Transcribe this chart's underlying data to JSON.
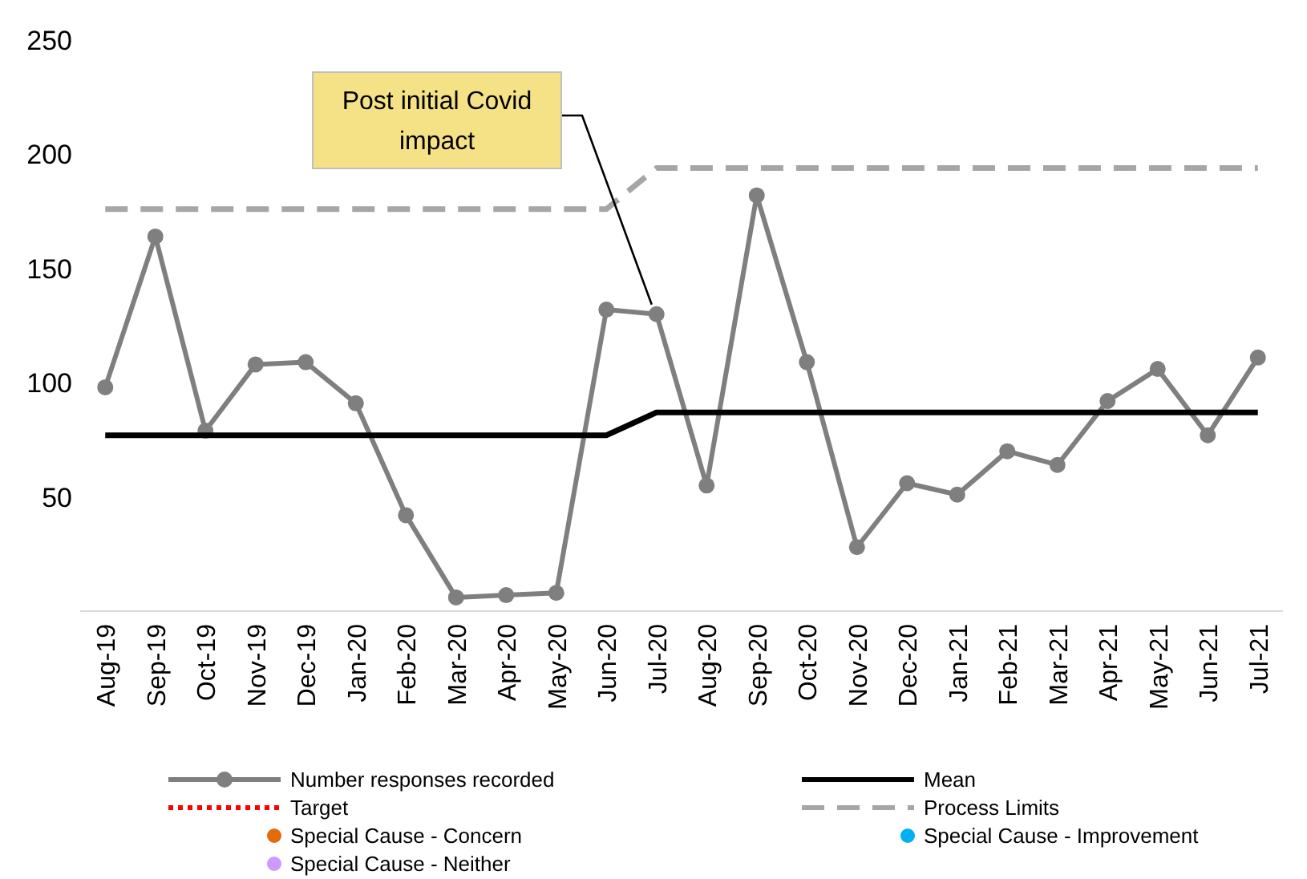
{
  "chart_data": {
    "type": "line",
    "categories": [
      "Aug-19",
      "Sep-19",
      "Oct-19",
      "Nov-19",
      "Dec-19",
      "Jan-20",
      "Feb-20",
      "Mar-20",
      "Apr-20",
      "May-20",
      "Jun-20",
      "Jul-20",
      "Aug-20",
      "Sep-20",
      "Oct-20",
      "Nov-20",
      "Dec-20",
      "Jan-21",
      "Feb-21",
      "Mar-21",
      "Apr-21",
      "May-21",
      "Jun-21",
      "Jul-21"
    ],
    "series": [
      {
        "name": "Number responses recorded",
        "color": "#7f7f7f",
        "type": "line",
        "marker": "circle",
        "line_style": "solid",
        "values": [
          98,
          164,
          79,
          108,
          109,
          91,
          42,
          6,
          7,
          8,
          132,
          130,
          55,
          182,
          109,
          28,
          56,
          51,
          70,
          64,
          92,
          106,
          77,
          111
        ]
      },
      {
        "name": "Mean",
        "color": "#000000",
        "type": "line",
        "marker": "none",
        "line_style": "solid",
        "values": [
          77,
          77,
          77,
          77,
          77,
          77,
          77,
          77,
          77,
          77,
          77,
          87,
          87,
          87,
          87,
          87,
          87,
          87,
          87,
          87,
          87,
          87,
          87,
          87
        ]
      },
      {
        "name": "Target",
        "color": "#ff0000",
        "type": "line",
        "marker": "none",
        "line_style": "dotted",
        "values": [
          null,
          null,
          null,
          null,
          null,
          null,
          null,
          null,
          null,
          null,
          null,
          null,
          null,
          null,
          null,
          null,
          null,
          null,
          null,
          null,
          null,
          null,
          null,
          null
        ]
      },
      {
        "name": "Process Limits",
        "color": "#a6a6a6",
        "type": "line",
        "marker": "none",
        "line_style": "dashed",
        "values": [
          176,
          176,
          176,
          176,
          176,
          176,
          176,
          176,
          176,
          176,
          176,
          194,
          194,
          194,
          194,
          194,
          194,
          194,
          194,
          194,
          194,
          194,
          194,
          194
        ]
      },
      {
        "name": "Special Cause - Concern",
        "color": "#e36c09",
        "type": "scatter",
        "marker": "circle",
        "values": [
          null,
          null,
          null,
          null,
          null,
          null,
          null,
          null,
          null,
          null,
          null,
          null,
          null,
          null,
          null,
          null,
          null,
          null,
          null,
          null,
          null,
          null,
          null,
          null
        ]
      },
      {
        "name": "Special Cause - Improvement",
        "color": "#00b0f0",
        "type": "scatter",
        "marker": "circle",
        "values": [
          null,
          null,
          null,
          null,
          null,
          null,
          null,
          null,
          null,
          null,
          null,
          null,
          null,
          null,
          null,
          null,
          null,
          null,
          null,
          null,
          null,
          null,
          null,
          null
        ]
      },
      {
        "name": "Special Cause - Neither",
        "color": "#cc99ff",
        "type": "scatter",
        "marker": "circle",
        "values": [
          null,
          null,
          null,
          null,
          null,
          null,
          null,
          null,
          null,
          null,
          null,
          null,
          null,
          null,
          null,
          null,
          null,
          null,
          null,
          null,
          null,
          null,
          null,
          null
        ]
      }
    ],
    "ylim": [
      0,
      250
    ],
    "yticks": [
      50,
      100,
      150,
      200,
      250
    ],
    "grid": false,
    "legend": "bottom",
    "annotations": [
      {
        "text": "Post initial Covid impact",
        "x": "Jul-20",
        "y": 130
      }
    ]
  }
}
